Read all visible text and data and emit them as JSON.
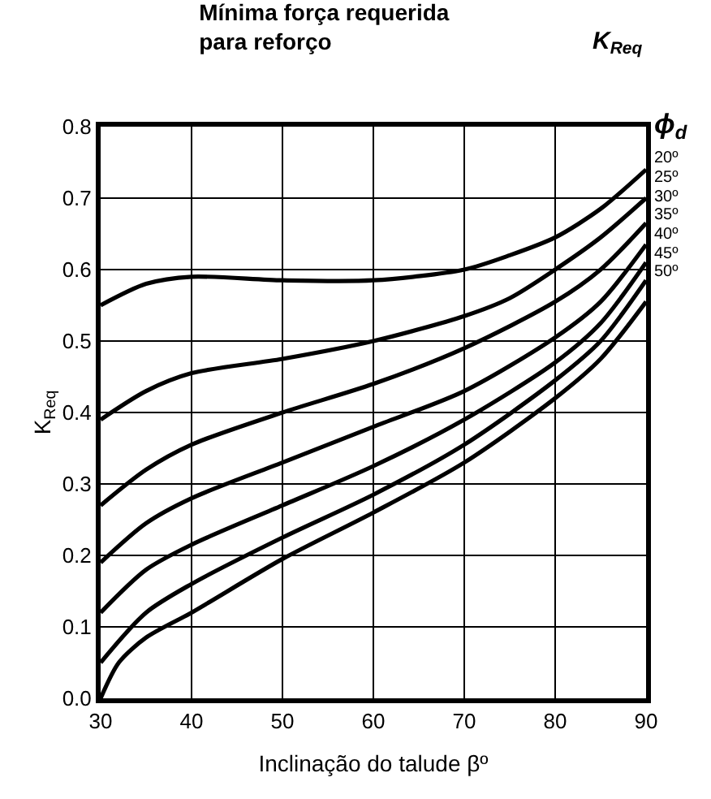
{
  "chart_data": {
    "type": "line",
    "title": "Mínima força requerida\npara reforço",
    "xlabel": "Inclinação do talude βº",
    "ylabel": "K$_{Req}$",
    "annotations": [
      "K$_{Req}$",
      "ϕ$_{d}$"
    ],
    "xlim": [
      30,
      90
    ],
    "ylim": [
      0,
      0.8
    ],
    "xticks": [
      30,
      40,
      50,
      60,
      70,
      80,
      90
    ],
    "yticks": [
      {
        "value": 0,
        "label": "0.0"
      },
      0.1,
      0.2,
      0.3,
      0.4,
      0.5,
      0.6,
      0.7,
      0.8
    ],
    "grid": true,
    "legend": false,
    "series": [
      {
        "name": "20º",
        "color": "#000000",
        "x": [
          30,
          35,
          40,
          50,
          60,
          70,
          75,
          80,
          85,
          90
        ],
        "values": [
          0.55,
          0.58,
          0.59,
          0.585,
          0.585,
          0.6,
          0.62,
          0.645,
          0.685,
          0.74
        ]
      },
      {
        "name": "25º",
        "color": "#000000",
        "x": [
          30,
          35,
          40,
          50,
          60,
          70,
          75,
          80,
          85,
          90
        ],
        "values": [
          0.39,
          0.43,
          0.455,
          0.475,
          0.5,
          0.535,
          0.56,
          0.6,
          0.645,
          0.7
        ]
      },
      {
        "name": "30º",
        "color": "#000000",
        "x": [
          30,
          35,
          40,
          50,
          60,
          70,
          80,
          85,
          90
        ],
        "values": [
          0.27,
          0.32,
          0.355,
          0.4,
          0.44,
          0.49,
          0.555,
          0.6,
          0.665
        ]
      },
      {
        "name": "35º",
        "color": "#000000",
        "x": [
          30,
          35,
          40,
          50,
          60,
          70,
          80,
          85,
          90
        ],
        "values": [
          0.19,
          0.245,
          0.28,
          0.33,
          0.38,
          0.43,
          0.505,
          0.555,
          0.635
        ]
      },
      {
        "name": "40º",
        "color": "#000000",
        "x": [
          30,
          35,
          40,
          50,
          60,
          70,
          80,
          85,
          90
        ],
        "values": [
          0.12,
          0.18,
          0.215,
          0.27,
          0.325,
          0.39,
          0.47,
          0.525,
          0.61
        ]
      },
      {
        "name": "45º",
        "color": "#000000",
        "x": [
          30,
          35,
          40,
          50,
          60,
          70,
          80,
          85,
          90
        ],
        "values": [
          0.05,
          0.12,
          0.16,
          0.225,
          0.285,
          0.355,
          0.445,
          0.5,
          0.585
        ]
      },
      {
        "name": "50º",
        "color": "#000000",
        "x": [
          30,
          32,
          35,
          40,
          50,
          60,
          70,
          80,
          85,
          90
        ],
        "values": [
          0.0,
          0.05,
          0.085,
          0.12,
          0.195,
          0.26,
          0.33,
          0.42,
          0.475,
          0.555
        ]
      }
    ]
  }
}
